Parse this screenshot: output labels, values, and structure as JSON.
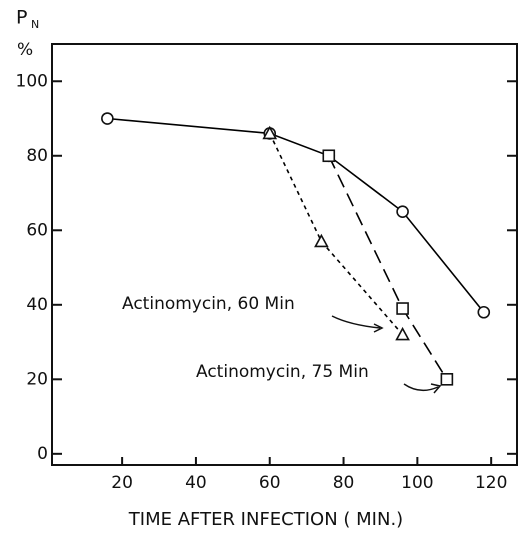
{
  "chart_data": {
    "type": "line",
    "xlabel": "TIME AFTER INFECTION ( MIN.)",
    "ylabel": "P",
    "ylabel_subscript": "N",
    "yunit": "%",
    "xlim": [
      1,
      127
    ],
    "xticks": [
      20,
      40,
      60,
      80,
      100,
      120
    ],
    "ylim": [
      -3,
      110
    ],
    "yticks": [
      0,
      20,
      40,
      60,
      80,
      100
    ],
    "series": [
      {
        "x": [
          16,
          60,
          76,
          96,
          118
        ],
        "values": [
          90,
          86,
          80,
          65,
          38
        ],
        "color": "#000000",
        "marker": "circle",
        "dash": "solid"
      },
      {
        "x": [
          60,
          74,
          96
        ],
        "values": [
          86,
          57,
          32
        ],
        "color": "#000000",
        "marker": "triangle",
        "dash": "dotted"
      },
      {
        "x": [
          76,
          96,
          108
        ],
        "values": [
          80,
          39,
          20
        ],
        "color": "#000000",
        "marker": "square",
        "dash": "dashed"
      }
    ],
    "annotations": [
      "Actinomycin, 60 Min",
      "Actinomycin, 75 Min"
    ]
  }
}
